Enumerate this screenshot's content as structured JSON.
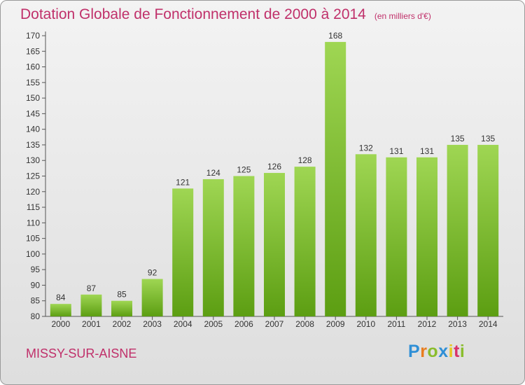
{
  "header": {
    "title": "Dotation Globale de Fonctionnement de 2000 à 2014",
    "unit_note": "(en milliers d'€)"
  },
  "footer": {
    "commune": "MISSY-SUR-AISNE",
    "logo_text": "Proxiti"
  },
  "colors": {
    "title": "#c0306a",
    "bar_light": "#9fd653",
    "bar_dark": "#5c9e12"
  },
  "chart_data": {
    "type": "bar",
    "title": "Dotation Globale de Fonctionnement de 2000 à 2014",
    "subtitle": "(en milliers d'€)",
    "categories": [
      "2000",
      "2001",
      "2002",
      "2003",
      "2004",
      "2005",
      "2006",
      "2007",
      "2008",
      "2009",
      "2010",
      "2011",
      "2012",
      "2013",
      "2014"
    ],
    "values": [
      84,
      87,
      85,
      92,
      121,
      124,
      125,
      126,
      128,
      168,
      132,
      131,
      131,
      135,
      135
    ],
    "xlabel": "",
    "ylabel": "",
    "ylim": [
      80,
      170
    ],
    "ytick_step": 5,
    "grid": false,
    "legend": "none"
  }
}
